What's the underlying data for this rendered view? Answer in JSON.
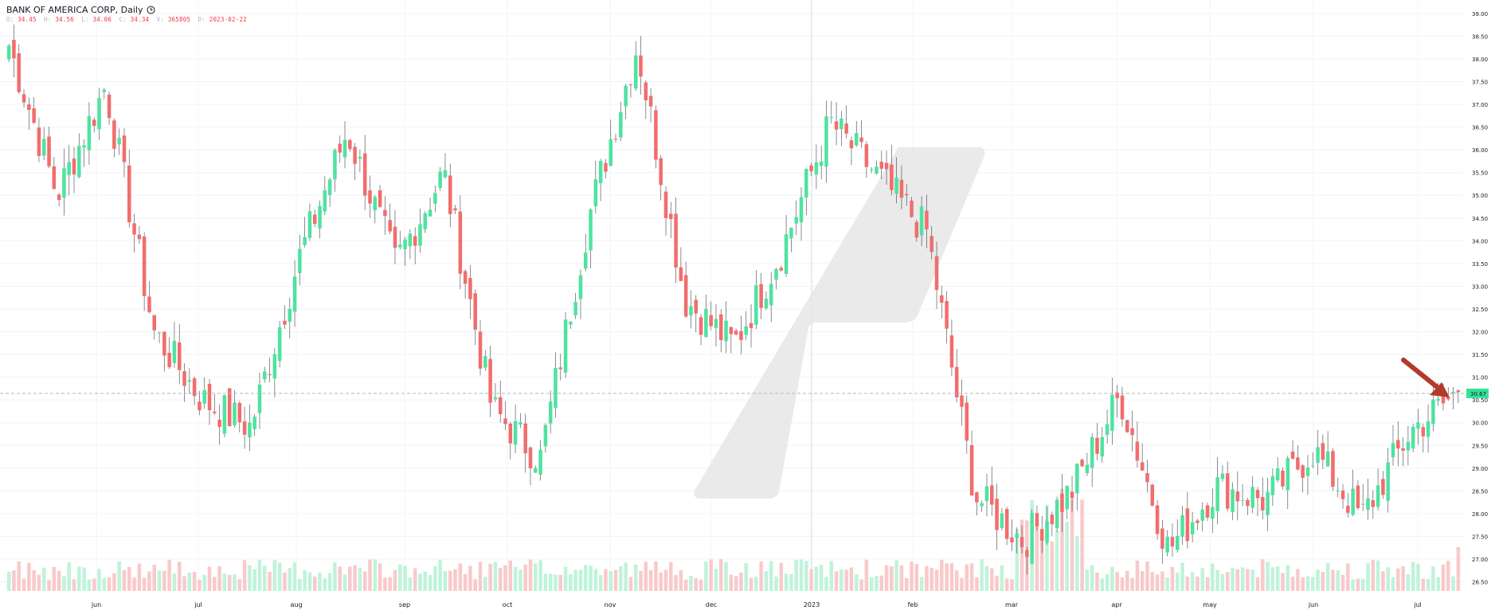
{
  "header": {
    "title": "BANK OF AMERICA CORP, Daily",
    "clock_icon": "clock-icon"
  },
  "ohlc": {
    "o_label": "O:",
    "o": "34.45",
    "h_label": "H:",
    "h": "34.56",
    "l_label": "L:",
    "l": "34.06",
    "c_label": "C:",
    "c": "34.34",
    "v_label": "V:",
    "v": "365805",
    "d_label": "D:",
    "d": "2023-02-22"
  },
  "colors": {
    "up": "#4fe3a0",
    "down": "#f26d6d",
    "up_volume": "#bff3da",
    "down_volume": "#f9caca",
    "grid": "#f0f3fa",
    "axis_text": "#131722",
    "annotation_arrow": "#b23a2a",
    "last_price_bg": "#34e39a"
  },
  "chart_data": {
    "type": "candlestick",
    "title": "BANK OF AMERICA CORP, Daily",
    "ylim": [
      26.3,
      39.05
    ],
    "y_ticks": [
      "26.50",
      "27.00",
      "27.50",
      "28.00",
      "28.50",
      "29.00",
      "29.50",
      "30.00",
      "30.50",
      "31.00",
      "31.50",
      "32.00",
      "32.50",
      "33.00",
      "33.50",
      "34.00",
      "34.50",
      "35.00",
      "35.50",
      "36.00",
      "36.50",
      "37.00",
      "37.50",
      "38.00",
      "38.50",
      "39.00"
    ],
    "x_ticks": [
      "jun",
      "jul",
      "aug",
      "sep",
      "oct",
      "nov",
      "dec",
      "2023",
      "feb",
      "mar",
      "apr",
      "may",
      "jun",
      "jul"
    ],
    "last_price": "30.67",
    "grid": true,
    "anchors": [
      {
        "date": "May 2022",
        "close": 38.3
      },
      {
        "date": "mid May",
        "close": 35.0
      },
      {
        "date": "late May",
        "close": 37.4
      },
      {
        "date": "mid Jun",
        "close": 32.0
      },
      {
        "date": "late Jun",
        "close": 30.5
      },
      {
        "date": "mid Jul",
        "close": 29.9
      },
      {
        "date": "early Aug",
        "close": 33.6
      },
      {
        "date": "mid Aug",
        "close": 36.4
      },
      {
        "date": "early Sep",
        "close": 33.5
      },
      {
        "date": "mid Sep",
        "close": 35.5
      },
      {
        "date": "early Oct",
        "close": 30.3
      },
      {
        "date": "mid Oct",
        "close": 29.2
      },
      {
        "date": "late Oct",
        "close": 34.5
      },
      {
        "date": "mid Nov",
        "close": 38.3
      },
      {
        "date": "early Dec",
        "close": 32.7
      },
      {
        "date": "mid Dec",
        "close": 31.7
      },
      {
        "date": "early Jan",
        "close": 33.8
      },
      {
        "date": "early Feb",
        "close": 36.6
      },
      {
        "date": "mid Feb",
        "close": 35.4
      },
      {
        "date": "early Mar",
        "close": 34.2
      },
      {
        "date": "mid Mar",
        "close": 28.4
      },
      {
        "date": "late Mar",
        "close": 27.4
      },
      {
        "date": "early Apr",
        "close": 28.5
      },
      {
        "date": "mid Apr",
        "close": 30.6
      },
      {
        "date": "early May",
        "close": 27.2
      },
      {
        "date": "mid May",
        "close": 28.6
      },
      {
        "date": "early Jun",
        "close": 28.3
      },
      {
        "date": "mid Jun",
        "close": 29.4
      },
      {
        "date": "early Jul",
        "close": 27.9
      },
      {
        "date": "mid Jul",
        "close": 29.8
      },
      {
        "date": "late Jul",
        "close": 30.67
      }
    ]
  }
}
